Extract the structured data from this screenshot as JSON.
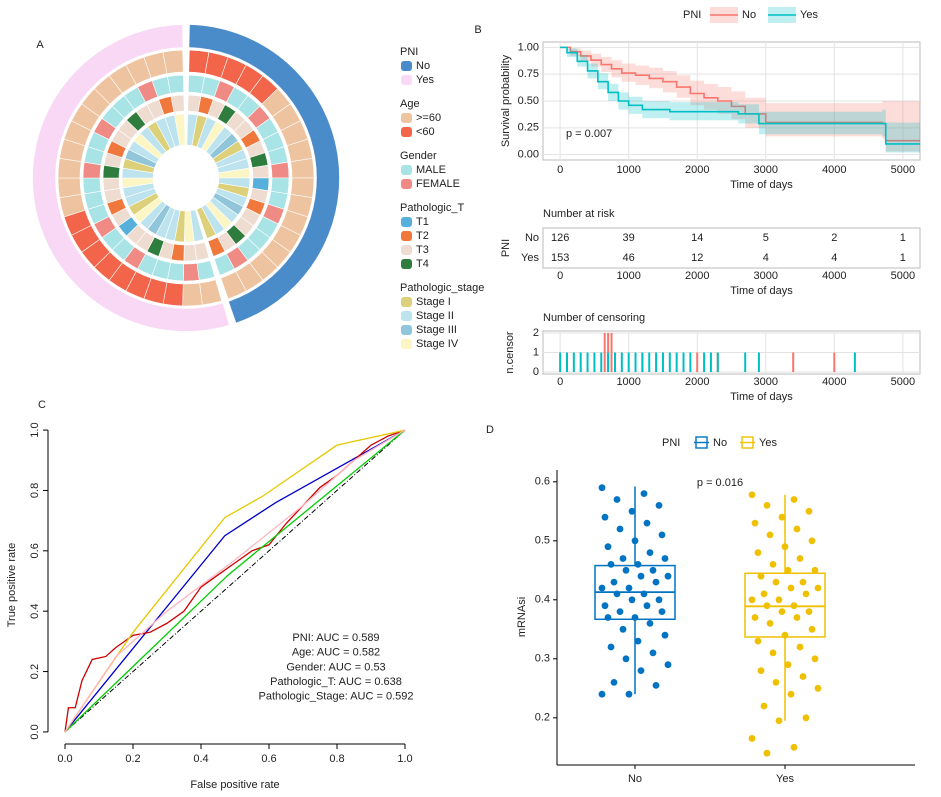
{
  "chart_data": [
    {
      "type": "circos",
      "label": "A",
      "legend": [
        {
          "title": "PNI",
          "items": [
            "No",
            "Yes"
          ],
          "colors": [
            "#4A8BC9",
            "#F8D8F5"
          ],
          "values": [
            "No",
            "No",
            "No",
            "No",
            "No",
            "No",
            "No",
            "No",
            "No",
            "No",
            "No",
            "No",
            "No",
            "No",
            "No",
            "No",
            "No",
            "No",
            "Yes",
            "Yes",
            "Yes",
            "Yes",
            "Yes",
            "Yes",
            "Yes",
            "Yes",
            "Yes",
            "Yes",
            "Yes",
            "Yes",
            "Yes",
            "Yes",
            "Yes",
            "Yes",
            "Yes",
            "Yes",
            "Yes",
            "Yes",
            "Yes",
            "Yes"
          ]
        },
        {
          "title": "Age",
          "items": [
            ">=60",
            "<60"
          ],
          "colors": [
            "#EEC4A0",
            "#F2654A"
          ],
          "values": [
            "<60",
            "<60",
            "<60",
            "<60",
            "<60",
            ">=60",
            ">=60",
            ">=60",
            ">=60",
            ">=60",
            ">=60",
            ">=60",
            ">=60",
            ">=60",
            ">=60",
            ">=60",
            ">=60",
            ">=60",
            ">=60",
            ">=60",
            "<60",
            "<60",
            "<60",
            "<60",
            "<60",
            "<60",
            "<60",
            "<60",
            ">=60",
            ">=60",
            ">=60",
            ">=60",
            ">=60",
            ">=60",
            ">=60",
            ">=60",
            ">=60",
            ">=60",
            ">=60",
            ">=60"
          ]
        },
        {
          "title": "Gender",
          "items": [
            "MALE",
            "FEMALE"
          ],
          "colors": [
            "#A8E3E6",
            "#EF8A85"
          ],
          "values": [
            "MALE",
            "MALE",
            "FEMALE",
            "MALE",
            "MALE",
            "FEMALE",
            "MALE",
            "MALE",
            "MALE",
            "FEMALE",
            "MALE",
            "MALE",
            "FEMALE",
            "MALE",
            "MALE",
            "MALE",
            "FEMALE",
            "MALE",
            "MALE",
            "FEMALE",
            "MALE",
            "MALE",
            "MALE",
            "FEMALE",
            "MALE",
            "MALE",
            "FEMALE",
            "MALE",
            "MALE",
            "MALE",
            "FEMALE",
            "MALE",
            "MALE",
            "FEMALE",
            "MALE",
            "MALE",
            "MALE",
            "FEMALE",
            "MALE",
            "MALE"
          ]
        },
        {
          "title": "Pathologic_T",
          "items": [
            "T1",
            "T2",
            "T3",
            "T4"
          ],
          "colors": [
            "#56B0DB",
            "#F0783C",
            "#EFDCD0",
            "#2E7D3E"
          ],
          "values": [
            "T3",
            "T2",
            "T3",
            "T4",
            "T3",
            "T3",
            "T2",
            "T3",
            "T4",
            "T3",
            "T1",
            "T3",
            "T2",
            "T3",
            "T3",
            "T4",
            "T3",
            "T2",
            "T3",
            "T3",
            "T2",
            "T3",
            "T4",
            "T3",
            "T3",
            "T1",
            "T3",
            "T2",
            "T3",
            "T3",
            "T4",
            "T3",
            "T2",
            "T3",
            "T3",
            "T4",
            "T3",
            "T3",
            "T2",
            "T3"
          ]
        },
        {
          "title": "Pathologic_stage",
          "items": [
            "Stage I",
            "Stage II",
            "Stage III",
            "Stage IV"
          ],
          "colors": [
            "#DDD07A",
            "#BCE3EE",
            "#91C5D9",
            "#FCF5C4"
          ],
          "values": [
            "Stage II",
            "Stage I",
            "Stage II",
            "Stage IV",
            "Stage II",
            "Stage III",
            "Stage I",
            "Stage II",
            "Stage II",
            "Stage IV",
            "Stage II",
            "Stage I",
            "Stage II",
            "Stage III",
            "Stage II",
            "Stage IV",
            "Stage II",
            "Stage I",
            "Stage II",
            "Stage IV",
            "Stage I",
            "Stage II",
            "Stage II",
            "Stage III",
            "Stage II",
            "Stage IV",
            "Stage I",
            "Stage II",
            "Stage II",
            "Stage IV",
            "Stage II",
            "Stage I",
            "Stage III",
            "Stage II",
            "Stage IV",
            "Stage II",
            "Stage I",
            "Stage II",
            "Stage II",
            "Stage IV"
          ]
        }
      ]
    },
    {
      "type": "survival",
      "label": "B",
      "legend_title": "PNI",
      "xlabel": "Time of days",
      "ylabel": "Survival probability",
      "annotation": "p = 0.007",
      "xlim": [
        -250,
        5250
      ],
      "xticks": [
        0,
        1000,
        2000,
        3000,
        4000,
        5000
      ],
      "ylim": [
        -0.05,
        1.05
      ],
      "yticks": [
        {
          "value": 0,
          "label": "0.00"
        },
        {
          "value": 0.25,
          "label": "0.25"
        },
        {
          "value": 0.5,
          "label": "0.50"
        },
        {
          "value": 0.75,
          "label": "0.75"
        },
        {
          "value": 1,
          "label": "1.00"
        }
      ],
      "grid": true,
      "series": [
        {
          "name": "No",
          "color": "#F8766D",
          "x": [
            0,
            150,
            300,
            450,
            600,
            750,
            900,
            1100,
            1300,
            1500,
            1700,
            1900,
            2100,
            2300,
            2500,
            2700,
            3000,
            4700,
            4750,
            5250
          ],
          "values": [
            1,
            0.96,
            0.92,
            0.88,
            0.84,
            0.8,
            0.76,
            0.74,
            0.71,
            0.68,
            0.63,
            0.57,
            0.53,
            0.5,
            0.45,
            0.38,
            0.3,
            0.29,
            0.13,
            0.13
          ],
          "lower": [
            1,
            0.92,
            0.87,
            0.82,
            0.77,
            0.72,
            0.68,
            0.65,
            0.62,
            0.58,
            0.53,
            0.46,
            0.42,
            0.38,
            0.33,
            0.25,
            0.17,
            0.15,
            0.03,
            0.03
          ],
          "upper": [
            1,
            0.99,
            0.97,
            0.94,
            0.91,
            0.88,
            0.85,
            0.83,
            0.81,
            0.78,
            0.74,
            0.69,
            0.66,
            0.63,
            0.59,
            0.53,
            0.48,
            0.5,
            0.5,
            0.5
          ],
          "censor_times": [
            650,
            700,
            750,
            1200,
            2000,
            2300,
            3400,
            4000
          ],
          "censor_counts": [
            2,
            2,
            2,
            1,
            1,
            1,
            1,
            1
          ]
        },
        {
          "name": "Yes",
          "color": "#00BFC4",
          "x": [
            0,
            100,
            250,
            400,
            550,
            700,
            850,
            1000,
            1200,
            1600,
            2600,
            2900,
            4700,
            4750,
            5250
          ],
          "values": [
            1,
            0.95,
            0.87,
            0.78,
            0.68,
            0.58,
            0.5,
            0.46,
            0.42,
            0.4,
            0.38,
            0.29,
            0.29,
            0.1,
            0.1
          ],
          "lower": [
            1,
            0.91,
            0.82,
            0.71,
            0.61,
            0.5,
            0.42,
            0.38,
            0.34,
            0.32,
            0.29,
            0.19,
            0.17,
            0.02,
            0.02
          ],
          "upper": [
            1,
            0.99,
            0.93,
            0.85,
            0.76,
            0.66,
            0.58,
            0.54,
            0.5,
            0.49,
            0.47,
            0.4,
            0.42,
            0.3,
            0.3
          ],
          "censor_times": [
            0,
            100,
            200,
            300,
            400,
            500,
            600,
            700,
            800,
            900,
            1000,
            1100,
            1200,
            1300,
            1400,
            1500,
            1600,
            1700,
            1800,
            1900,
            2100,
            2200,
            2300,
            2700,
            2900,
            4300
          ],
          "censor_counts": [
            1,
            1,
            1,
            1,
            1,
            1,
            1,
            1,
            1,
            1,
            1,
            1,
            1,
            1,
            1,
            1,
            1,
            1,
            1,
            1,
            1,
            1,
            1,
            1,
            1,
            1
          ]
        }
      ],
      "risk_table": {
        "title": "Number at risk",
        "ylabel": "PNI",
        "x": [
          0,
          1000,
          2000,
          3000,
          4000,
          5000
        ],
        "rows": [
          [
            126,
            39,
            14,
            5,
            2,
            1
          ],
          [
            153,
            46,
            12,
            4,
            4,
            1
          ]
        ]
      },
      "censoring": {
        "title": "Number of censoring",
        "ylabel": "n.censor",
        "ylim": [
          -0.1,
          2.1
        ],
        "yticks": [
          0,
          1,
          2
        ]
      }
    },
    {
      "type": "roc",
      "label": "C",
      "xlabel": "False positive rate",
      "ylabel": "True positive rate",
      "xlim": [
        -0.05,
        1.05
      ],
      "ylim": [
        -0.04,
        1.04
      ],
      "xticks": [
        {
          "value": 0,
          "label": "0.0"
        },
        0.2,
        0.4,
        0.6,
        0.8,
        {
          "value": 1,
          "label": "1.0"
        }
      ],
      "yticks": [
        {
          "value": 0,
          "label": "0.0"
        },
        0.2,
        0.4,
        0.6,
        0.8,
        {
          "value": 1,
          "label": "1.0"
        }
      ],
      "series": [
        {
          "name": "PNI: AUC = 0.589",
          "color": "#0000CD",
          "x": [
            0,
            0.47,
            0.62,
            1
          ],
          "values": [
            0,
            0.65,
            0.76,
            1
          ]
        },
        {
          "name": "Age: AUC = 0.582",
          "color": "#CD0000",
          "x": [
            0,
            0.01,
            0.03,
            0.05,
            0.08,
            0.12,
            0.15,
            0.2,
            0.25,
            0.3,
            0.35,
            0.4,
            0.45,
            0.5,
            0.55,
            0.6,
            0.65,
            0.7,
            0.75,
            0.8,
            0.85,
            0.9,
            0.95,
            1
          ],
          "values": [
            0,
            0.08,
            0.08,
            0.17,
            0.24,
            0.25,
            0.28,
            0.32,
            0.33,
            0.36,
            0.4,
            0.48,
            0.52,
            0.56,
            0.6,
            0.62,
            0.69,
            0.75,
            0.81,
            0.85,
            0.9,
            0.95,
            0.98,
            1
          ]
        },
        {
          "name": "Gender: AUC = 0.53",
          "color": "#00CD00",
          "x": [
            0,
            0.48,
            1
          ],
          "values": [
            0,
            0.52,
            1
          ]
        },
        {
          "name": "Pathologic_T: AUC = 0.638",
          "color": "#E8C800",
          "x": [
            0,
            0.2,
            0.47,
            0.58,
            0.8,
            1
          ],
          "values": [
            0,
            0.33,
            0.71,
            0.78,
            0.95,
            1
          ]
        },
        {
          "name": "Pathologic_Stage: AUC = 0.592",
          "color": "#FFB6C1",
          "x": [
            0,
            0.15,
            0.3,
            0.5,
            0.7,
            0.85,
            1
          ],
          "values": [
            0,
            0.25,
            0.4,
            0.57,
            0.75,
            0.9,
            1
          ]
        }
      ]
    },
    {
      "type": "box",
      "label": "D",
      "legend_title": "PNI",
      "ylabel": "mRNAsi",
      "annotation": "p = 0.016",
      "categories": [
        "No",
        "Yes"
      ],
      "ylim": [
        0.12,
        0.62
      ],
      "yticks": [
        0.2,
        0.3,
        0.4,
        0.5,
        0.6
      ],
      "series": [
        {
          "name": "No",
          "color": "#0073C2",
          "box": [
            0.24,
            0.367,
            0.413,
            0.458,
            0.592
          ],
          "points": [
            0.59,
            0.58,
            0.57,
            0.56,
            0.55,
            0.54,
            0.53,
            0.52,
            0.51,
            0.5,
            0.49,
            0.48,
            0.47,
            0.47,
            0.46,
            0.46,
            0.45,
            0.45,
            0.44,
            0.44,
            0.43,
            0.43,
            0.42,
            0.42,
            0.41,
            0.41,
            0.4,
            0.4,
            0.39,
            0.39,
            0.38,
            0.38,
            0.37,
            0.37,
            0.36,
            0.35,
            0.34,
            0.33,
            0.32,
            0.31,
            0.3,
            0.29,
            0.28,
            0.26,
            0.255,
            0.24,
            0.24
          ]
        },
        {
          "name": "Yes",
          "color": "#EFC000",
          "box": [
            0.195,
            0.337,
            0.389,
            0.445,
            0.578
          ],
          "points": [
            0.578,
            0.57,
            0.56,
            0.55,
            0.54,
            0.53,
            0.52,
            0.51,
            0.5,
            0.49,
            0.48,
            0.47,
            0.46,
            0.45,
            0.45,
            0.44,
            0.43,
            0.43,
            0.42,
            0.42,
            0.41,
            0.41,
            0.4,
            0.4,
            0.39,
            0.39,
            0.38,
            0.38,
            0.37,
            0.37,
            0.36,
            0.35,
            0.34,
            0.33,
            0.32,
            0.31,
            0.3,
            0.29,
            0.28,
            0.27,
            0.26,
            0.25,
            0.24,
            0.22,
            0.2,
            0.195,
            0.165,
            0.15,
            0.14
          ]
        }
      ]
    }
  ]
}
